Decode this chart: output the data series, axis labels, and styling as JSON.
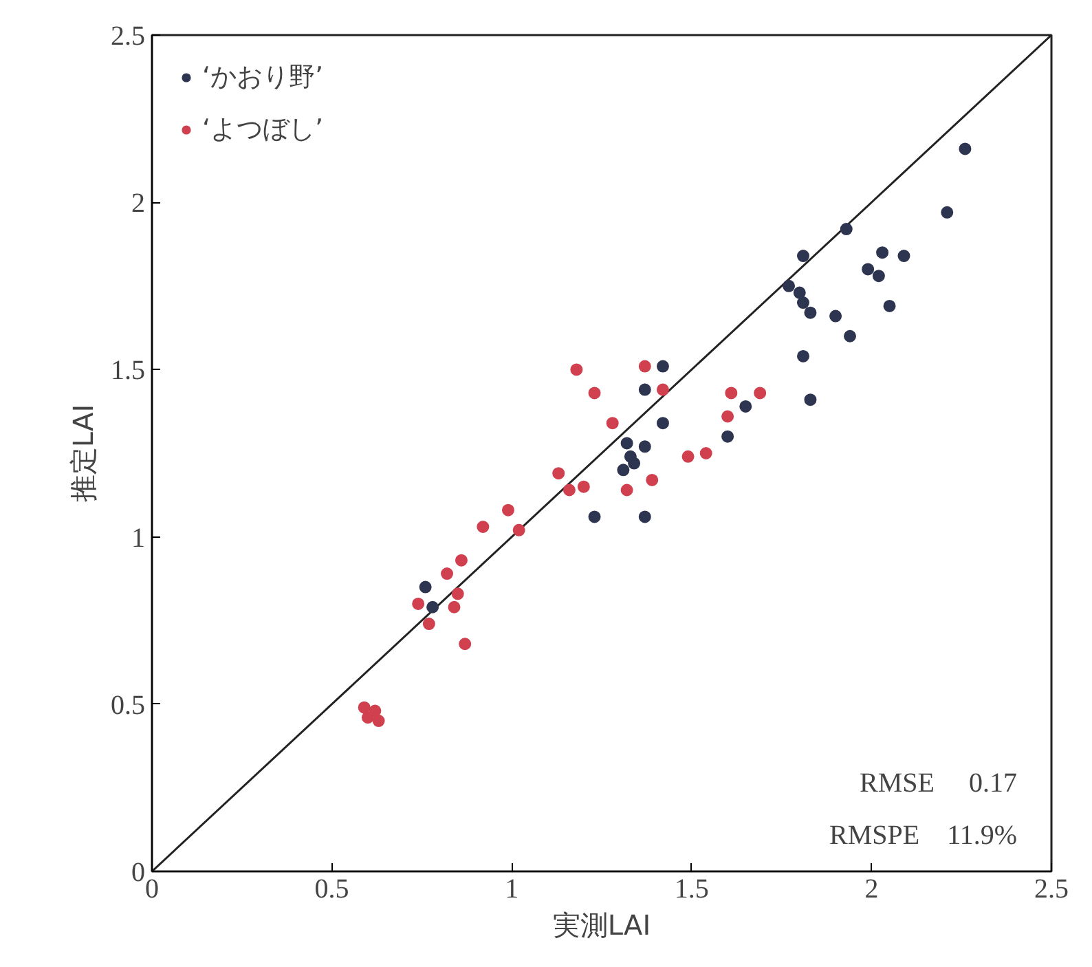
{
  "chart_data": {
    "type": "scatter",
    "xlabel": "実測LAI",
    "ylabel": "推定LAI",
    "xlim": [
      0,
      2.5
    ],
    "ylim": [
      0,
      2.5
    ],
    "xticks": [
      0,
      0.5,
      1,
      1.5,
      2,
      2.5
    ],
    "yticks": [
      0,
      0.5,
      1,
      1.5,
      2,
      2.5
    ],
    "grid": false,
    "legend": "top left",
    "marker": "circle",
    "annotations": [
      "RMSE　 0.17",
      "RMSPE　11.9%"
    ],
    "series": [
      {
        "type": "line",
        "marker": "none",
        "color": "#222222",
        "x": [
          0,
          2.5
        ],
        "values": [
          0,
          2.5
        ]
      },
      {
        "name": "‘かおり野’",
        "color": "#2e3550",
        "x": [
          2.26,
          2.21,
          1.93,
          1.81,
          2.03,
          2.09,
          1.99,
          2.02,
          1.77,
          1.8,
          1.81,
          1.83,
          1.9,
          2.05,
          1.94,
          1.81,
          1.83,
          1.65,
          1.6,
          1.42,
          1.37,
          1.42,
          1.32,
          1.37,
          1.33,
          1.31,
          1.34,
          1.23,
          1.37,
          0.76,
          0.78
        ],
        "values": [
          2.16,
          1.97,
          1.92,
          1.84,
          1.85,
          1.84,
          1.8,
          1.78,
          1.75,
          1.73,
          1.7,
          1.67,
          1.66,
          1.69,
          1.6,
          1.54,
          1.41,
          1.39,
          1.3,
          1.51,
          1.44,
          1.34,
          1.28,
          1.27,
          1.24,
          1.2,
          1.22,
          1.06,
          1.06,
          0.85,
          0.79
        ]
      },
      {
        "name": "‘よつぼし’",
        "color": "#d0404e",
        "x": [
          1.61,
          1.69,
          1.6,
          1.37,
          1.18,
          1.23,
          1.42,
          1.28,
          1.49,
          1.54,
          1.32,
          1.39,
          1.13,
          1.16,
          1.2,
          0.99,
          0.92,
          1.02,
          0.86,
          0.82,
          0.74,
          0.85,
          0.84,
          0.77,
          0.87,
          0.6,
          0.62,
          0.63,
          0.59
        ],
        "values": [
          1.43,
          1.43,
          1.36,
          1.51,
          1.5,
          1.43,
          1.44,
          1.34,
          1.24,
          1.25,
          1.14,
          1.17,
          1.19,
          1.14,
          1.15,
          1.08,
          1.03,
          1.02,
          0.93,
          0.89,
          0.8,
          0.83,
          0.79,
          0.74,
          0.68,
          0.46,
          0.48,
          0.45,
          0.49
        ]
      }
    ]
  }
}
